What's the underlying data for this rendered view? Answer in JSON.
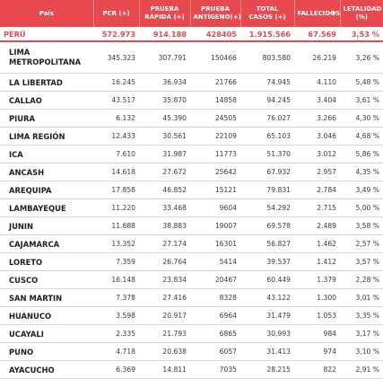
{
  "headers": {
    "pais": "País",
    "pcr": "PCR (+)",
    "prueba_rapida": "PRUEBA RÁPIDA (+)",
    "prueba_antigeno": "PRUEBA ANTÍGENO(+)",
    "total_casos": "TOTAL CASOS (+)",
    "fallecidos": "FALLECIDOS",
    "letalidad": "LETALIDAD (%)",
    "sort_indicator": "▼"
  },
  "total": {
    "region": "PERÚ",
    "pcr": "572.973",
    "rapida": "914.188",
    "antigeno": "428405",
    "total": "1.915.566",
    "fallecidos": "67.569",
    "letalidad": "3,53 %"
  },
  "rows": [
    {
      "region": "LIMA METROPOLITANA",
      "pcr": "345.323",
      "rapida": "307.791",
      "antigeno": "150466",
      "total": "803.580",
      "fallecidos": "26.219",
      "letalidad": "3,26 %"
    },
    {
      "region": "LA LIBERTAD",
      "pcr": "16.245",
      "rapida": "36.934",
      "antigeno": "21766",
      "total": "74.945",
      "fallecidos": "4.110",
      "letalidad": "5,48 %"
    },
    {
      "region": "CALLAO",
      "pcr": "43.517",
      "rapida": "35.870",
      "antigeno": "14858",
      "total": "94.245",
      "fallecidos": "3.404",
      "letalidad": "3,61 %"
    },
    {
      "region": "PIURA",
      "pcr": "6.132",
      "rapida": "45.390",
      "antigeno": "24505",
      "total": "76.027",
      "fallecidos": "3.266",
      "letalidad": "4,30 %"
    },
    {
      "region": "LIMA REGIÓN",
      "pcr": "12.433",
      "rapida": "30.561",
      "antigeno": "22109",
      "total": "65.103",
      "fallecidos": "3.046",
      "letalidad": "4,68 %"
    },
    {
      "region": "ICA",
      "pcr": "7.610",
      "rapida": "31.987",
      "antigeno": "11773",
      "total": "51.370",
      "fallecidos": "3.012",
      "letalidad": "5,86 %"
    },
    {
      "region": "ANCASH",
      "pcr": "14.618",
      "rapida": "27.672",
      "antigeno": "25642",
      "total": "67.932",
      "fallecidos": "2.957",
      "letalidad": "4,35 %"
    },
    {
      "region": "AREQUIPA",
      "pcr": "17.858",
      "rapida": "46.852",
      "antigeno": "15121",
      "total": "79.831",
      "fallecidos": "2.784",
      "letalidad": "3,49 %"
    },
    {
      "region": "LAMBAYEQUE",
      "pcr": "11.220",
      "rapida": "33.468",
      "antigeno": "9604",
      "total": "54.292",
      "fallecidos": "2.715",
      "letalidad": "5,00 %"
    },
    {
      "region": "JUNIN",
      "pcr": "11.688",
      "rapida": "38.883",
      "antigeno": "19007",
      "total": "69.578",
      "fallecidos": "2.489",
      "letalidad": "3,58 %"
    },
    {
      "region": "CAJAMARCA",
      "pcr": "13.352",
      "rapida": "27.174",
      "antigeno": "16301",
      "total": "56.827",
      "fallecidos": "1.462",
      "letalidad": "2,57 %"
    },
    {
      "region": "LORETO",
      "pcr": "7.359",
      "rapida": "26.764",
      "antigeno": "5414",
      "total": "39.537",
      "fallecidos": "1.412",
      "letalidad": "3,57 %"
    },
    {
      "region": "CUSCO",
      "pcr": "16.148",
      "rapida": "23.834",
      "antigeno": "20467",
      "total": "60.449",
      "fallecidos": "1.379",
      "letalidad": "2,28 %"
    },
    {
      "region": "SAN MARTIN",
      "pcr": "7.378",
      "rapida": "27.416",
      "antigeno": "8328",
      "total": "43.122",
      "fallecidos": "1.300",
      "letalidad": "3,01 %"
    },
    {
      "region": "HUANUCO",
      "pcr": "3.598",
      "rapida": "20.917",
      "antigeno": "6964",
      "total": "31.479",
      "fallecidos": "1.053",
      "letalidad": "3,35 %"
    },
    {
      "region": "UCAYALI",
      "pcr": "2.335",
      "rapida": "21.793",
      "antigeno": "6865",
      "total": "30.993",
      "fallecidos": "984",
      "letalidad": "3,17 %"
    },
    {
      "region": "PUNO",
      "pcr": "4.718",
      "rapida": "20.638",
      "antigeno": "6057",
      "total": "31.413",
      "fallecidos": "974",
      "letalidad": "3,10 %"
    },
    {
      "region": "AYACUCHO",
      "pcr": "6.369",
      "rapida": "14.811",
      "antigeno": "7035",
      "total": "28.215",
      "fallecidos": "822",
      "letalidad": "2,91 %"
    }
  ]
}
